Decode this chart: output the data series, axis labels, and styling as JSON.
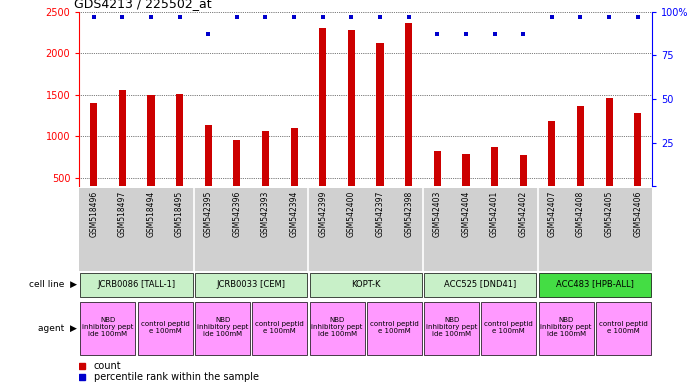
{
  "title": "GDS4213 / 225502_at",
  "samples": [
    "GSM518496",
    "GSM518497",
    "GSM518494",
    "GSM518495",
    "GSM542395",
    "GSM542396",
    "GSM542393",
    "GSM542394",
    "GSM542399",
    "GSM542400",
    "GSM542397",
    "GSM542398",
    "GSM542403",
    "GSM542404",
    "GSM542401",
    "GSM542402",
    "GSM542407",
    "GSM542408",
    "GSM542405",
    "GSM542406"
  ],
  "counts": [
    1400,
    1560,
    1500,
    1510,
    1140,
    960,
    1060,
    1100,
    2300,
    2280,
    2120,
    2360,
    820,
    790,
    870,
    770,
    1190,
    1370,
    1460,
    1280
  ],
  "percentile_ranks": [
    97,
    97,
    97,
    97,
    87,
    97,
    97,
    97,
    97,
    97,
    97,
    97,
    87,
    87,
    87,
    87,
    97,
    97,
    97,
    97
  ],
  "cell_lines": [
    {
      "label": "JCRB0086 [TALL-1]",
      "start": 0,
      "end": 4,
      "color": "#c8f0c8"
    },
    {
      "label": "JCRB0033 [CEM]",
      "start": 4,
      "end": 8,
      "color": "#c8f0c8"
    },
    {
      "label": "KOPT-K",
      "start": 8,
      "end": 12,
      "color": "#c8f0c8"
    },
    {
      "label": "ACC525 [DND41]",
      "start": 12,
      "end": 16,
      "color": "#c8f0c8"
    },
    {
      "label": "ACC483 [HPB-ALL]",
      "start": 16,
      "end": 20,
      "color": "#44dd44"
    }
  ],
  "agents": [
    {
      "label": "NBD\ninhibitory pept\nide 100mM",
      "start": 0,
      "end": 2,
      "color": "#ff99ff"
    },
    {
      "label": "control peptid\ne 100mM",
      "start": 2,
      "end": 4,
      "color": "#ff99ff"
    },
    {
      "label": "NBD\ninhibitory pept\nide 100mM",
      "start": 4,
      "end": 6,
      "color": "#ff99ff"
    },
    {
      "label": "control peptid\ne 100mM",
      "start": 6,
      "end": 8,
      "color": "#ff99ff"
    },
    {
      "label": "NBD\ninhibitory pept\nide 100mM",
      "start": 8,
      "end": 10,
      "color": "#ff99ff"
    },
    {
      "label": "control peptid\ne 100mM",
      "start": 10,
      "end": 12,
      "color": "#ff99ff"
    },
    {
      "label": "NBD\ninhibitory pept\nide 100mM",
      "start": 12,
      "end": 14,
      "color": "#ff99ff"
    },
    {
      "label": "control peptid\ne 100mM",
      "start": 14,
      "end": 16,
      "color": "#ff99ff"
    },
    {
      "label": "NBD\ninhibitory pept\nide 100mM",
      "start": 16,
      "end": 18,
      "color": "#ff99ff"
    },
    {
      "label": "control peptid\ne 100mM",
      "start": 18,
      "end": 20,
      "color": "#ff99ff"
    }
  ],
  "ylim_left": [
    400,
    2500
  ],
  "yticks_left": [
    500,
    1000,
    1500,
    2000,
    2500
  ],
  "ylim_right": [
    0,
    100
  ],
  "yticks_right": [
    0,
    25,
    50,
    75,
    100
  ],
  "bar_color": "#cc0000",
  "dot_color": "#0000cc",
  "background_color": "#ffffff",
  "tick_bg_color": "#d0d0d0",
  "label_left": [
    "cell line",
    "agent"
  ],
  "legend": [
    {
      "symbol": "s",
      "color": "#cc0000",
      "label": "count"
    },
    {
      "symbol": "s",
      "color": "#0000cc",
      "label": "percentile rank within the sample"
    }
  ]
}
